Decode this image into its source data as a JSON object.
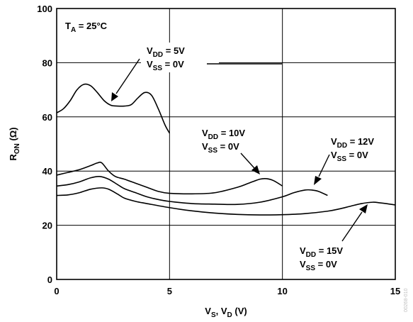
{
  "chart_data": {
    "type": "line",
    "x_ticks": [
      "0",
      "5",
      "10",
      "15"
    ],
    "y_ticks": [
      "0",
      "20",
      "40",
      "60",
      "80",
      "100"
    ],
    "xlim": [
      0,
      15
    ],
    "ylim": [
      0,
      100
    ],
    "grid": true,
    "xlabel": {
      "main": "V",
      "s1": "S",
      "mid": ", V",
      "s2": "D",
      "end": " (V)"
    },
    "ylabel": {
      "main": "R",
      "s1": "ON",
      "end": " (Ω)"
    },
    "temp_note": {
      "main": "T",
      "sub": "A",
      "end": " = 25°C"
    },
    "series": [
      {
        "vdd": "= 5V",
        "vss": "= 0V",
        "x": [
          0,
          0.3,
          0.6,
          0.9,
          1.2,
          1.5,
          1.8,
          2.1,
          2.4,
          2.7,
          3.0,
          3.3,
          3.6,
          3.9,
          4.2,
          4.5,
          4.8,
          5.0
        ],
        "y": [
          61.5,
          63,
          66,
          70,
          72,
          71.5,
          69,
          66,
          64.3,
          64,
          64,
          64.5,
          67,
          69,
          68,
          63,
          57,
          54
        ]
      },
      {
        "vdd": "= 10V",
        "vss": "= 0V",
        "x": [
          0,
          0.5,
          1.0,
          1.5,
          1.8,
          2.0,
          2.3,
          2.6,
          3.0,
          3.5,
          4.0,
          4.5,
          5.0,
          6.0,
          7.0,
          8.0,
          8.5,
          9.0,
          9.3,
          9.6,
          10.0
        ],
        "y": [
          38.5,
          39.5,
          40.5,
          42,
          43,
          43,
          40,
          38,
          37,
          35.5,
          34,
          32.5,
          31.8,
          31.6,
          32,
          34,
          35.5,
          37,
          37.2,
          36.5,
          34.5
        ]
      },
      {
        "vdd": "= 12V",
        "vss": "= 0V",
        "x": [
          0,
          0.5,
          1.0,
          1.5,
          1.9,
          2.3,
          2.7,
          3.0,
          3.5,
          4.0,
          4.5,
          5.0,
          6.0,
          7.0,
          8.0,
          9.0,
          10.0,
          10.5,
          11.0,
          11.3,
          11.6,
          12.0
        ],
        "y": [
          34.5,
          35,
          36,
          37.5,
          38,
          37,
          35,
          33.5,
          32,
          30.5,
          29.5,
          28.8,
          28,
          27.8,
          27.7,
          28.5,
          30.5,
          32,
          33,
          33,
          32.5,
          31
        ]
      },
      {
        "vdd": "= 15V",
        "vss": "= 0V",
        "x": [
          0,
          0.5,
          1.0,
          1.5,
          2.0,
          2.3,
          2.7,
          3.0,
          3.5,
          4.0,
          5.0,
          6.0,
          7.0,
          8.0,
          9.0,
          10.0,
          11.0,
          12.0,
          12.5,
          13.0,
          13.5,
          14.0,
          14.3,
          14.6,
          15.0
        ],
        "y": [
          31,
          31.2,
          32,
          33.3,
          33.8,
          33.3,
          31.5,
          30,
          28.8,
          28,
          26.5,
          25.3,
          24.5,
          24,
          23.8,
          23.9,
          24.3,
          25.2,
          26,
          27,
          28,
          28.5,
          28.3,
          28,
          27.5
        ]
      }
    ]
  }
}
